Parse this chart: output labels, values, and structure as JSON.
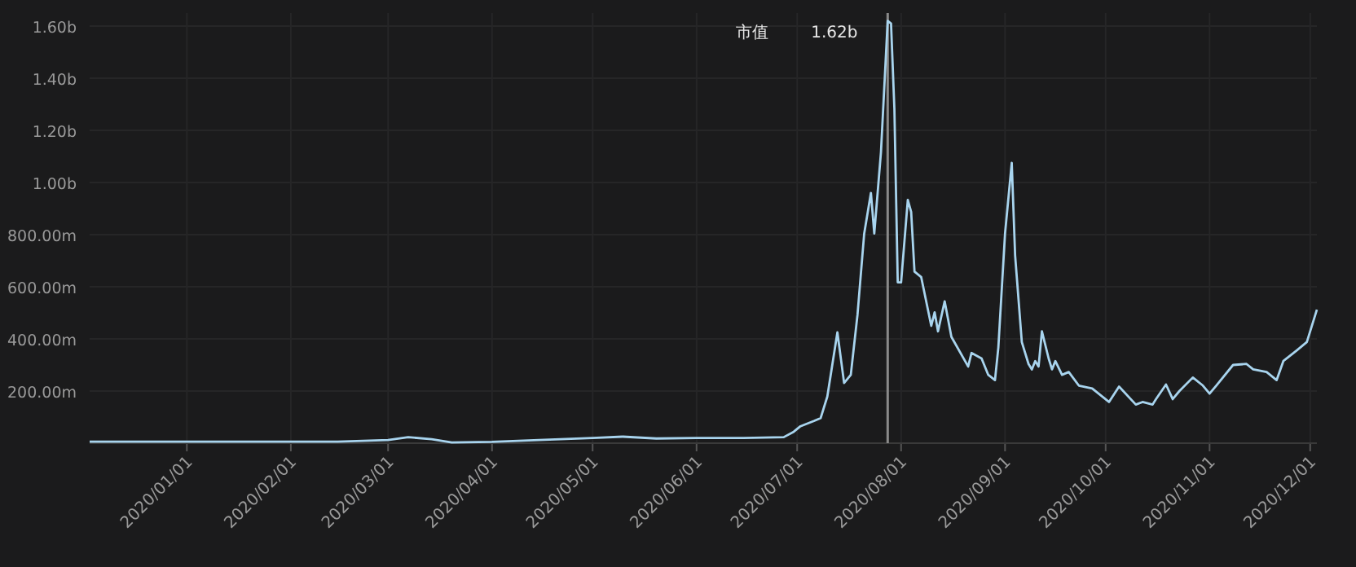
{
  "chart_data": {
    "type": "line",
    "grid": true,
    "marker": "none",
    "xlim": [
      "2019-12-03",
      "2020-12-03"
    ],
    "ylim": [
      0,
      1650000000
    ],
    "xticks": [
      {
        "value": "2020-01-01",
        "label": "2020/01/01"
      },
      {
        "value": "2020-02-01",
        "label": "2020/02/01"
      },
      {
        "value": "2020-03-01",
        "label": "2020/03/01"
      },
      {
        "value": "2020-04-01",
        "label": "2020/04/01"
      },
      {
        "value": "2020-05-01",
        "label": "2020/05/01"
      },
      {
        "value": "2020-06-01",
        "label": "2020/06/01"
      },
      {
        "value": "2020-07-01",
        "label": "2020/07/01"
      },
      {
        "value": "2020-08-01",
        "label": "2020/08/01"
      },
      {
        "value": "2020-09-01",
        "label": "2020/09/01"
      },
      {
        "value": "2020-10-01",
        "label": "2020/10/01"
      },
      {
        "value": "2020-11-01",
        "label": "2020/11/01"
      },
      {
        "value": "2020-12-01",
        "label": "2020/12/01"
      }
    ],
    "yticks": [
      {
        "value": 200000000,
        "label": "200.00m"
      },
      {
        "value": 400000000,
        "label": "400.00m"
      },
      {
        "value": 600000000,
        "label": "600.00m"
      },
      {
        "value": 800000000,
        "label": "800.00m"
      },
      {
        "value": 1000000000,
        "label": "1.00b"
      },
      {
        "value": 1200000000,
        "label": "1.20b"
      },
      {
        "value": 1400000000,
        "label": "1.40b"
      },
      {
        "value": 1600000000,
        "label": "1.60b"
      }
    ],
    "ref_lines": [
      {
        "axis": "x",
        "value": "2020-07-28",
        "color": "#8a8a8a"
      }
    ],
    "annotations": [
      {
        "text": "1.62b",
        "x": "2020-07-28",
        "y": 1620000000
      }
    ],
    "series": [
      {
        "name": "市值",
        "color": "#a8d4ee",
        "x": [
          "2019-12-03",
          "2020-01-15",
          "2020-02-15",
          "2020-03-01",
          "2020-03-07",
          "2020-03-14",
          "2020-03-20",
          "2020-04-01",
          "2020-04-15",
          "2020-05-01",
          "2020-05-10",
          "2020-05-20",
          "2020-06-01",
          "2020-06-15",
          "2020-06-27",
          "2020-06-30",
          "2020-07-02",
          "2020-07-06",
          "2020-07-08",
          "2020-07-10",
          "2020-07-13",
          "2020-07-15",
          "2020-07-17",
          "2020-07-19",
          "2020-07-21",
          "2020-07-23",
          "2020-07-24",
          "2020-07-26",
          "2020-07-28",
          "2020-07-29",
          "2020-07-30",
          "2020-07-31",
          "2020-08-01",
          "2020-08-03",
          "2020-08-04",
          "2020-08-05",
          "2020-08-07",
          "2020-08-10",
          "2020-08-11",
          "2020-08-12",
          "2020-08-14",
          "2020-08-16",
          "2020-08-21",
          "2020-08-22",
          "2020-08-25",
          "2020-08-27",
          "2020-08-29",
          "2020-08-30",
          "2020-09-01",
          "2020-09-03",
          "2020-09-04",
          "2020-09-06",
          "2020-09-08",
          "2020-09-09",
          "2020-09-10",
          "2020-09-11",
          "2020-09-12",
          "2020-09-14",
          "2020-09-15",
          "2020-09-16",
          "2020-09-18",
          "2020-09-20",
          "2020-09-23",
          "2020-09-27",
          "2020-10-02",
          "2020-10-05",
          "2020-10-10",
          "2020-10-12",
          "2020-10-15",
          "2020-10-16",
          "2020-10-19",
          "2020-10-21",
          "2020-10-23",
          "2020-10-27",
          "2020-10-30",
          "2020-11-01",
          "2020-11-03",
          "2020-11-08",
          "2020-11-12",
          "2020-11-14",
          "2020-11-18",
          "2020-11-21",
          "2020-11-23",
          "2020-11-27",
          "2020-11-30",
          "2020-12-03"
        ],
        "values": [
          6000000,
          6000000,
          6000000,
          12000000,
          23000000,
          15000000,
          3000000,
          5000000,
          12000000,
          20000000,
          25000000,
          18000000,
          20000000,
          20000000,
          23000000,
          44000000,
          65000000,
          85000000,
          96000000,
          179000000,
          425000000,
          231000000,
          262000000,
          493000000,
          804000000,
          960000000,
          804000000,
          1117000000,
          1620000000,
          1610000000,
          1283000000,
          617000000,
          617000000,
          933000000,
          887000000,
          658000000,
          637000000,
          450000000,
          502000000,
          429000000,
          544000000,
          408000000,
          294000000,
          346000000,
          325000000,
          262000000,
          242000000,
          367000000,
          804000000,
          1075000000,
          721000000,
          388000000,
          304000000,
          283000000,
          315000000,
          294000000,
          429000000,
          325000000,
          283000000,
          315000000,
          262000000,
          273000000,
          221000000,
          210000000,
          158000000,
          217000000,
          148000000,
          158000000,
          148000000,
          169000000,
          225000000,
          169000000,
          200000000,
          252000000,
          221000000,
          190000000,
          221000000,
          300000000,
          304000000,
          283000000,
          273000000,
          242000000,
          315000000,
          356000000,
          388000000,
          512000000
        ]
      }
    ]
  }
}
